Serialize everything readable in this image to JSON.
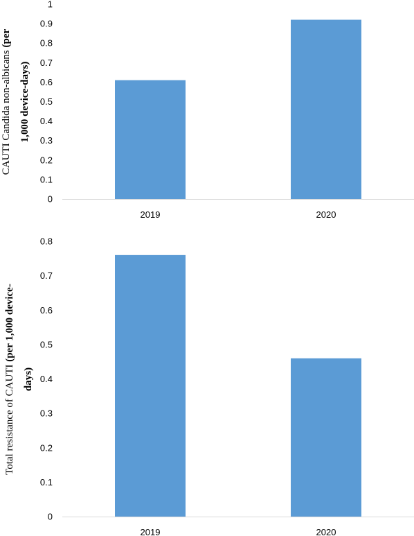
{
  "chart_data": [
    {
      "type": "bar",
      "categories": [
        "2019",
        "2020"
      ],
      "values": [
        0.61,
        0.92
      ],
      "ylim": [
        0,
        1
      ],
      "yticks": [
        "0",
        "0.1",
        "0.2",
        "0.3",
        "0.4",
        "0.5",
        "0.6",
        "0.7",
        "0.8",
        "0.9",
        "1"
      ],
      "ylabel": {
        "line1_normal": "CAUTI Candida non-albicans ",
        "line1_bold": "(per",
        "line2_bold": "1,000 device-days)"
      },
      "bar_color": "#5b9bd5",
      "grid": false
    },
    {
      "type": "bar",
      "categories": [
        "2019",
        "2020"
      ],
      "values": [
        0.76,
        0.46
      ],
      "ylim": [
        0,
        0.8
      ],
      "yticks": [
        "0",
        "0.1",
        "0.2",
        "0.3",
        "0.4",
        "0.5",
        "0.6",
        "0.7",
        "0.8"
      ],
      "ylabel": {
        "line1_normal": "Total resistance of CAUTI ",
        "line1_bold": "(per 1,000 device-",
        "line2_bold": "days)"
      },
      "bar_color": "#5b9bd5",
      "grid": false
    }
  ]
}
